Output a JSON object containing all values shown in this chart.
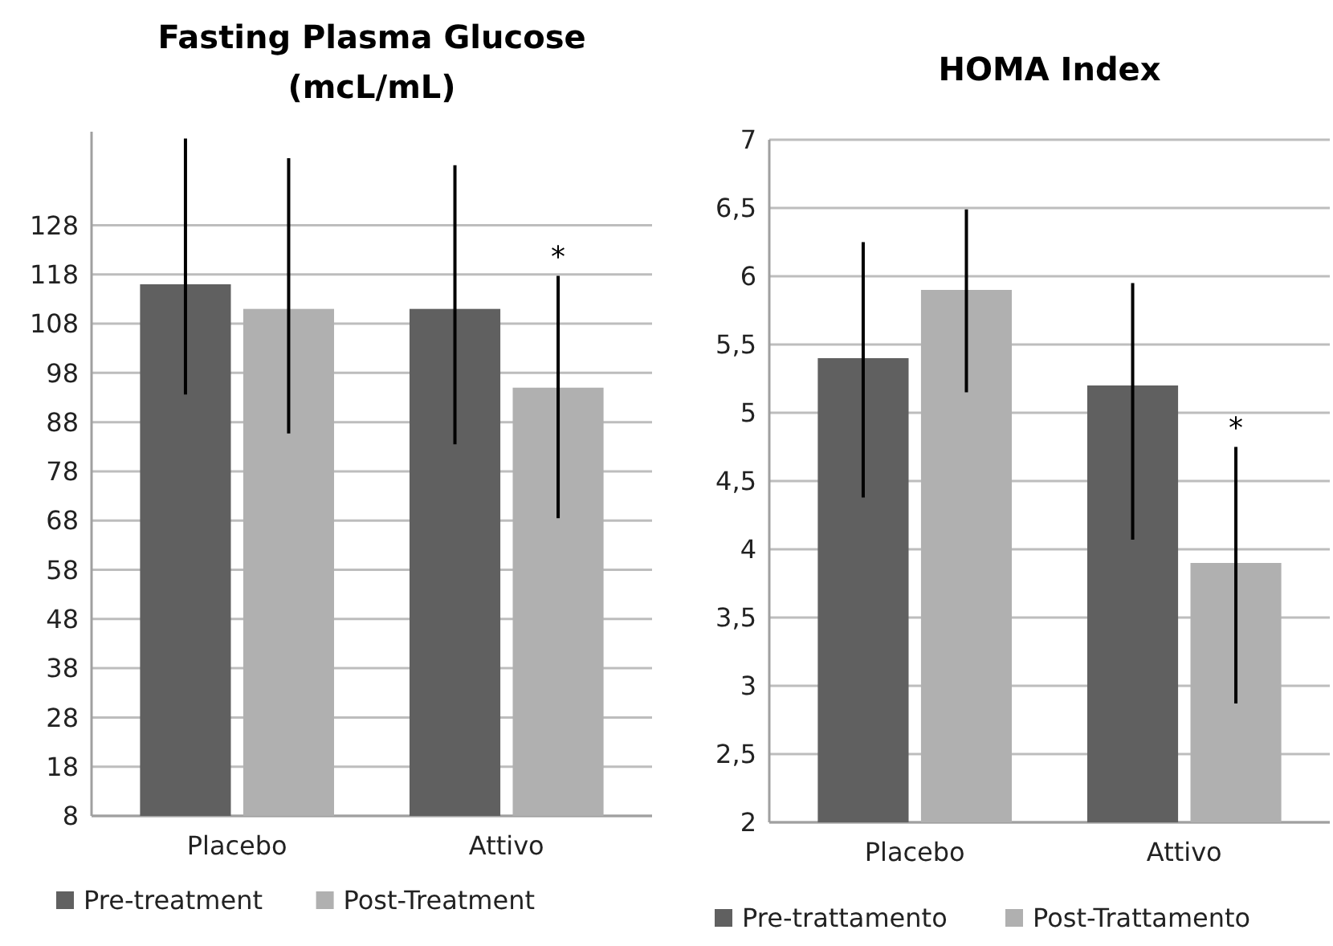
{
  "chart_data": [
    {
      "type": "bar",
      "title": "Fasting Plasma Glucose\n(mcL/mL)",
      "categories": [
        "Placebo",
        "Attivo"
      ],
      "series": [
        {
          "name": "Pre-treatment",
          "color": "#606060",
          "values": [
            116,
            111
          ],
          "errors": [
            [
              93.6,
              145.6
            ],
            [
              83.5,
              140.2
            ]
          ]
        },
        {
          "name": "Post-Treatment",
          "color": "#b0b0b0",
          "values": [
            111,
            95
          ],
          "errors": [
            [
              85.7,
              141.6
            ],
            [
              68.5,
              117.7
            ]
          ]
        }
      ],
      "ylim": [
        8,
        147
      ],
      "yticks": [
        8,
        18,
        28,
        38,
        48,
        58,
        68,
        78,
        88,
        98,
        108,
        118,
        128
      ],
      "grid": "y",
      "legend": "bottom",
      "annotations": [
        "*"
      ]
    },
    {
      "type": "bar",
      "title": "HOMA Index",
      "categories": [
        "Placebo",
        "Attivo"
      ],
      "series": [
        {
          "name": "Pre-trattamento",
          "color": "#606060",
          "values": [
            5.4,
            5.2
          ],
          "errors": [
            [
              4.38,
              6.25
            ],
            [
              4.07,
              5.95
            ]
          ]
        },
        {
          "name": "Post-Trattamento",
          "color": "#b0b0b0",
          "values": [
            5.9,
            3.9
          ],
          "errors": [
            [
              5.15,
              6.49
            ],
            [
              2.87,
              4.75
            ]
          ]
        }
      ],
      "ylim": [
        2,
        7
      ],
      "yticks": [
        2,
        {
          "value": 2.5,
          "label": "2,5"
        },
        3,
        {
          "value": 3.5,
          "label": "3,5"
        },
        4,
        {
          "value": 4.5,
          "label": "4,5"
        },
        5,
        {
          "value": 5.5,
          "label": "5,5"
        },
        6,
        {
          "value": 6.5,
          "label": "6,5"
        },
        7
      ],
      "grid": "y",
      "legend": "bottom",
      "annotations": [
        "*"
      ]
    }
  ]
}
